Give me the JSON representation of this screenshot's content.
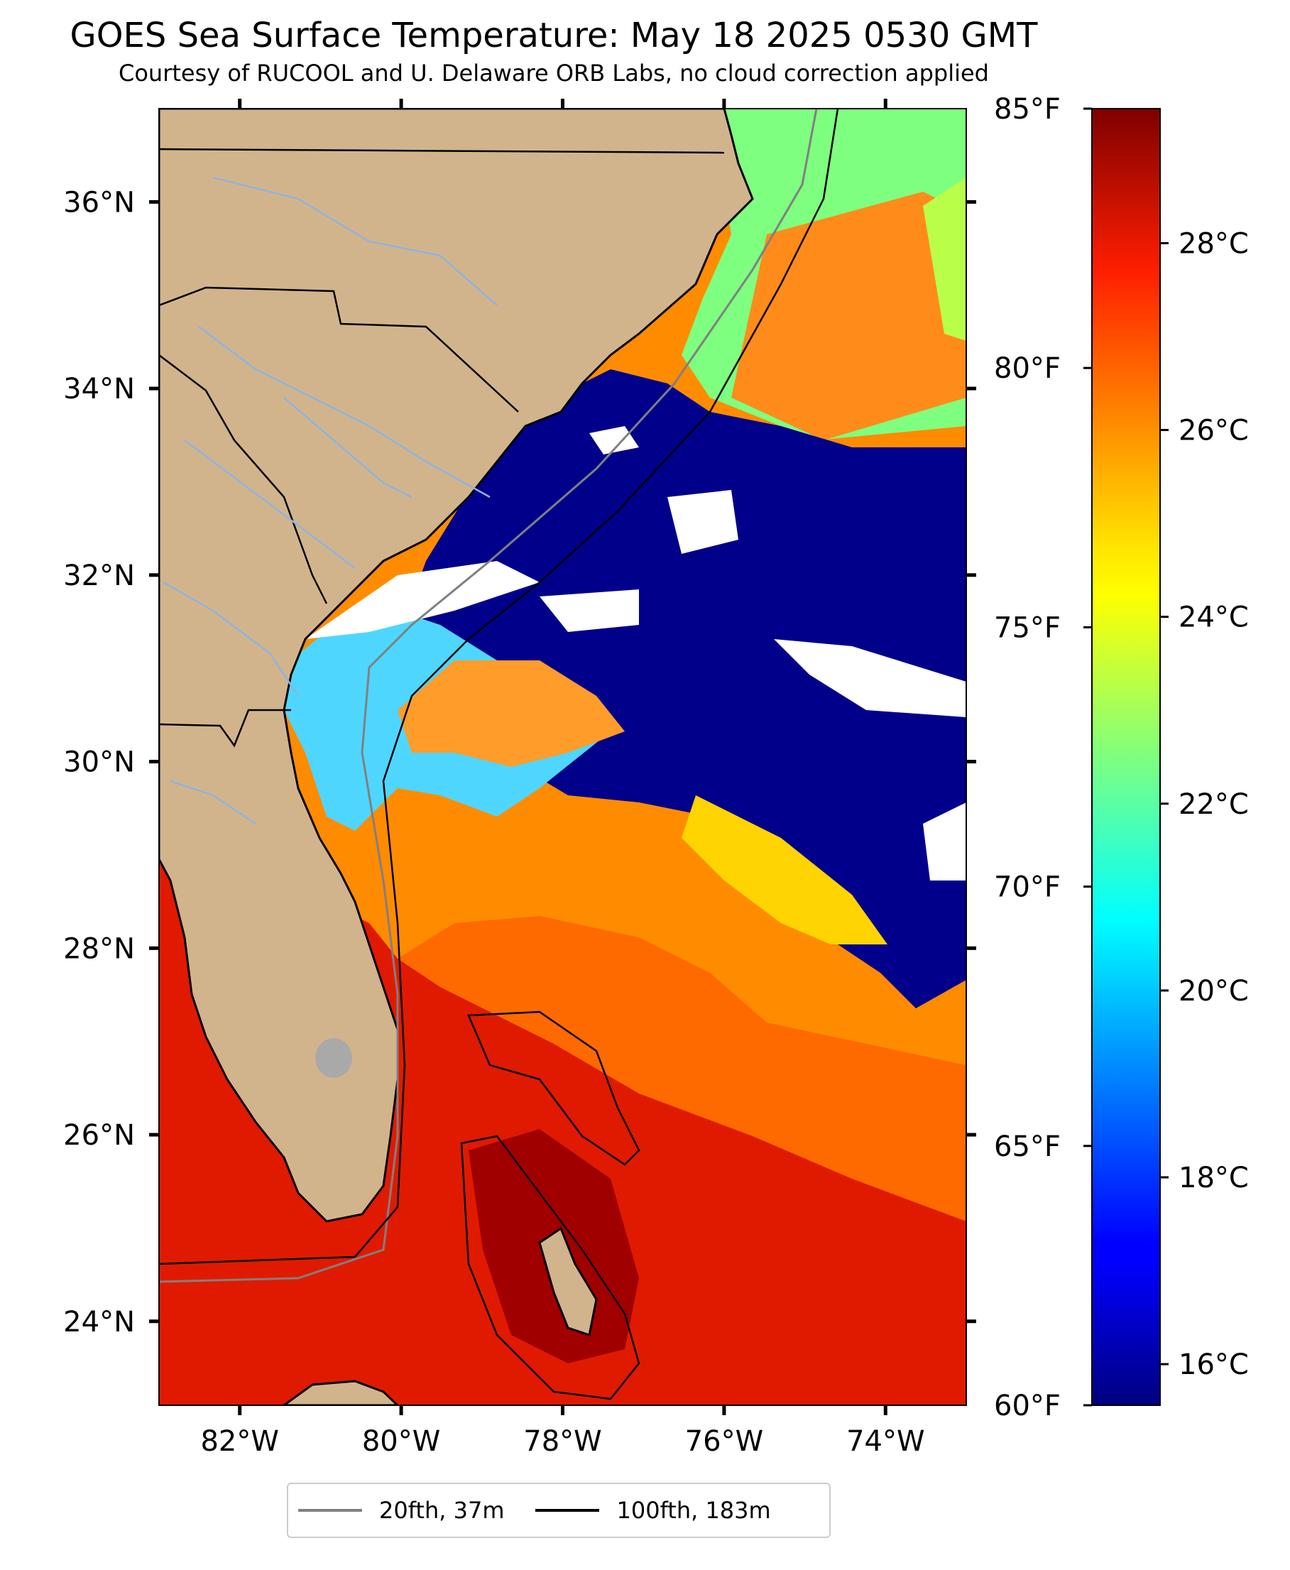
{
  "header": {
    "title": "GOES Sea Surface Temperature: May 18 2025 0530 GMT",
    "subtitle": "Courtesy of RUCOOL and U. Delaware ORB Labs, no cloud correction applied"
  },
  "map": {
    "lon_range": [
      -83.0,
      -73.0
    ],
    "lat_range": [
      23.1,
      37.0
    ],
    "lon_ticks": [
      {
        "value": -82,
        "label": "82°W"
      },
      {
        "value": -80,
        "label": "80°W"
      },
      {
        "value": -78,
        "label": "78°W"
      },
      {
        "value": -76,
        "label": "76°W"
      },
      {
        "value": -74,
        "label": "74°W"
      }
    ],
    "lat_ticks": [
      {
        "value": 24,
        "label": "24°N"
      },
      {
        "value": 26,
        "label": "26°N"
      },
      {
        "value": 28,
        "label": "28°N"
      },
      {
        "value": 30,
        "label": "30°N"
      },
      {
        "value": 32,
        "label": "32°N"
      },
      {
        "value": 34,
        "label": "34°N"
      },
      {
        "value": 36,
        "label": "36°N"
      }
    ],
    "colors": {
      "land": "#d2b48c",
      "cloud": "#ffffff",
      "cold_water": "#00008b",
      "coastline": "#000000",
      "rivers": "#8fb3e0",
      "lakes": "#a9a9a9"
    }
  },
  "colorbar": {
    "celsius_range": [
      15.56,
      29.44
    ],
    "celsius_ticks": [
      {
        "value": 16,
        "label": "16°C"
      },
      {
        "value": 18,
        "label": "18°C"
      },
      {
        "value": 20,
        "label": "20°C"
      },
      {
        "value": 22,
        "label": "22°C"
      },
      {
        "value": 24,
        "label": "24°C"
      },
      {
        "value": 26,
        "label": "26°C"
      },
      {
        "value": 28,
        "label": "28°C"
      }
    ],
    "fahrenheit_range": [
      60,
      85
    ],
    "fahrenheit_ticks": [
      {
        "value": 60,
        "label": "60°F"
      },
      {
        "value": 65,
        "label": "65°F"
      },
      {
        "value": 70,
        "label": "70°F"
      },
      {
        "value": 75,
        "label": "75°F"
      },
      {
        "value": 80,
        "label": "80°F"
      },
      {
        "value": 85,
        "label": "85°F"
      }
    ],
    "colormap": "jet"
  },
  "legend": {
    "items": [
      {
        "label": "20fth, 37m",
        "color": "#808080"
      },
      {
        "label": "100fth, 183m",
        "color": "#000000"
      }
    ]
  }
}
